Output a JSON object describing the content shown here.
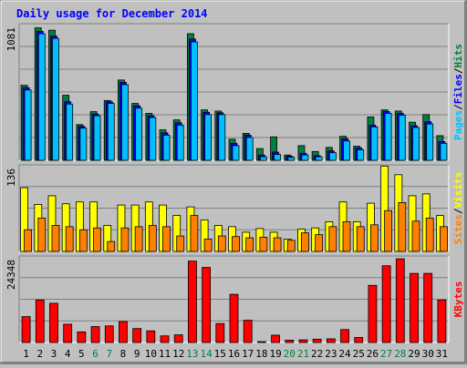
{
  "chart_data": [
    {
      "type": "bar",
      "title": "Daily usage for December 2014",
      "categories": [
        "1",
        "2",
        "3",
        "4",
        "5",
        "6",
        "7",
        "8",
        "9",
        "10",
        "11",
        "12",
        "13",
        "14",
        "15",
        "16",
        "17",
        "18",
        "19",
        "20",
        "21",
        "22",
        "23",
        "24",
        "25",
        "26",
        "27",
        "28",
        "29",
        "30",
        "31"
      ],
      "weekend_days": [
        "6",
        "7",
        "13",
        "14",
        "20",
        "21",
        "27",
        "28"
      ],
      "y_tick_label": "1081",
      "ylim": [
        0,
        1150
      ],
      "right_axis_labels": [
        {
          "text": "Pages",
          "color": "#00c0ff"
        },
        {
          "text": "Files",
          "color": "#0000ff"
        },
        {
          "text": "Hits",
          "color": "#008040"
        }
      ],
      "series": [
        {
          "name": "Hits",
          "color": "#008040",
          "values": [
            640,
            1130,
            1110,
            555,
            305,
            415,
            510,
            685,
            485,
            400,
            260,
            345,
            1080,
            430,
            420,
            180,
            230,
            100,
            200,
            45,
            125,
            75,
            110,
            205,
            120,
            370,
            430,
            420,
            325,
            390,
            210
          ]
        },
        {
          "name": "Files",
          "color": "#0000ff",
          "values": [
            620,
            1100,
            1060,
            500,
            290,
            395,
            500,
            665,
            465,
            380,
            235,
            320,
            1035,
            410,
            405,
            145,
            215,
            45,
            70,
            35,
            60,
            40,
            80,
            185,
            105,
            300,
            415,
            400,
            295,
            330,
            160
          ]
        },
        {
          "name": "Pages",
          "color": "#00c0ff",
          "values": [
            600,
            1080,
            1040,
            480,
            275,
            380,
            485,
            645,
            445,
            365,
            215,
            300,
            1010,
            390,
            390,
            125,
            195,
            30,
            50,
            25,
            45,
            30,
            65,
            165,
            90,
            285,
            400,
            385,
            280,
            310,
            145
          ]
        }
      ]
    },
    {
      "type": "bar",
      "categories": [
        "1",
        "2",
        "3",
        "4",
        "5",
        "6",
        "7",
        "8",
        "9",
        "10",
        "11",
        "12",
        "13",
        "14",
        "15",
        "16",
        "17",
        "18",
        "19",
        "20",
        "21",
        "22",
        "23",
        "24",
        "25",
        "26",
        "27",
        "28",
        "29",
        "30",
        "31"
      ],
      "y_tick_label": "136",
      "ylim": [
        0,
        137
      ],
      "right_axis_labels": [
        {
          "text": "Sites",
          "color": "#ff8000"
        },
        {
          "text": "Visits",
          "color": "#ffff00"
        }
      ],
      "series": [
        {
          "name": "Visits",
          "color": "#ffff00",
          "values": [
            103,
            76,
            90,
            77,
            80,
            80,
            42,
            75,
            75,
            80,
            75,
            58,
            72,
            51,
            42,
            40,
            31,
            37,
            31,
            20,
            36,
            38,
            48,
            80,
            48,
            78,
            138,
            124,
            90,
            93,
            58
          ]
        },
        {
          "name": "Sites",
          "color": "#ff8000",
          "values": [
            35,
            54,
            42,
            40,
            35,
            38,
            16,
            38,
            40,
            42,
            40,
            25,
            58,
            20,
            25,
            24,
            22,
            23,
            22,
            18,
            30,
            27,
            40,
            48,
            40,
            43,
            66,
            79,
            49,
            54,
            40
          ]
        }
      ]
    },
    {
      "type": "bar",
      "categories": [
        "1",
        "2",
        "3",
        "4",
        "5",
        "6",
        "7",
        "8",
        "9",
        "10",
        "11",
        "12",
        "13",
        "14",
        "15",
        "16",
        "17",
        "18",
        "19",
        "20",
        "21",
        "22",
        "23",
        "24",
        "25",
        "26",
        "27",
        "28",
        "29",
        "30",
        "31"
      ],
      "y_tick_label": "24348",
      "ylim": [
        0,
        25500
      ],
      "right_axis_labels": [
        {
          "text": "KBytes",
          "color": "#ff0000"
        }
      ],
      "series": [
        {
          "name": "KBytes",
          "color": "#ff0000",
          "values": [
            7800,
            12800,
            11800,
            5500,
            3200,
            4800,
            5000,
            6300,
            4200,
            3500,
            2000,
            2300,
            24500,
            22600,
            5700,
            14500,
            6700,
            250,
            2200,
            700,
            800,
            1000,
            1100,
            3900,
            1500,
            17200,
            23100,
            25200,
            20800,
            20800,
            12800
          ]
        }
      ]
    }
  ]
}
